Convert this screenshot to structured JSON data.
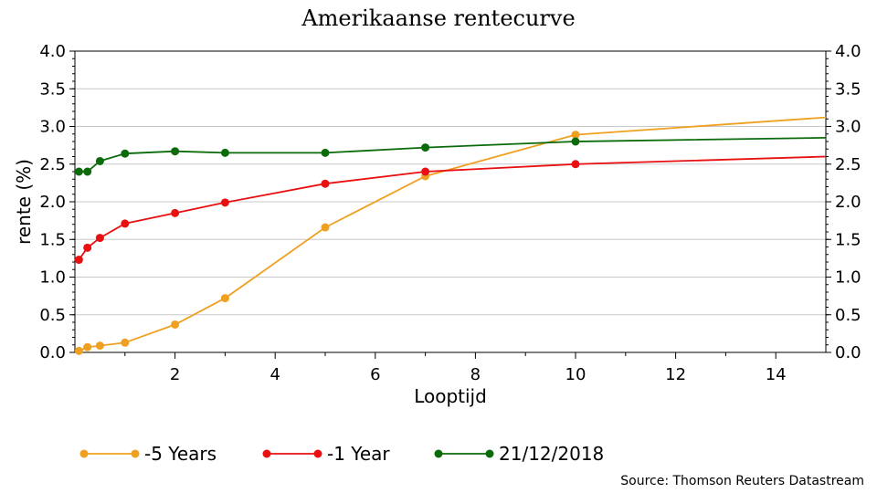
{
  "chart_data": {
    "type": "line",
    "title": "Amerikaanse rentecurve",
    "xlabel": "Looptijd",
    "ylabel": "rente (%)",
    "xlim": [
      0,
      15
    ],
    "ylim": [
      0,
      4
    ],
    "x_ticks": [
      "2",
      "4",
      "6",
      "8",
      "10",
      "12",
      "14"
    ],
    "y_ticks": [
      "0.0",
      "0.5",
      "1.0",
      "1.5",
      "2.0",
      "2.5",
      "3.0",
      "3.5",
      "4.0"
    ],
    "grid": "horizontal",
    "legend_position": "bottom",
    "source": "Source: Thomson Reuters Datastream",
    "series": [
      {
        "name": "-5 Years",
        "color": "#f0a020",
        "x": [
          0.08,
          0.25,
          0.5,
          1,
          2,
          3,
          5,
          7,
          10,
          15
        ],
        "y": [
          0.02,
          0.07,
          0.09,
          0.13,
          0.37,
          0.72,
          1.66,
          2.34,
          2.89,
          3.12
        ]
      },
      {
        "name": "-1 Year",
        "color": "#e81010",
        "x": [
          0.08,
          0.25,
          0.5,
          1,
          2,
          3,
          5,
          7,
          10,
          15
        ],
        "y": [
          1.23,
          1.39,
          1.52,
          1.71,
          1.85,
          1.99,
          2.24,
          2.4,
          2.5,
          2.6
        ]
      },
      {
        "name": "21/12/2018",
        "color": "#0b6b0b",
        "x": [
          0.08,
          0.25,
          0.5,
          1,
          2,
          3,
          5,
          7,
          10,
          15
        ],
        "y": [
          2.4,
          2.4,
          2.54,
          2.64,
          2.67,
          2.65,
          2.65,
          2.72,
          2.8,
          2.85
        ]
      }
    ]
  }
}
